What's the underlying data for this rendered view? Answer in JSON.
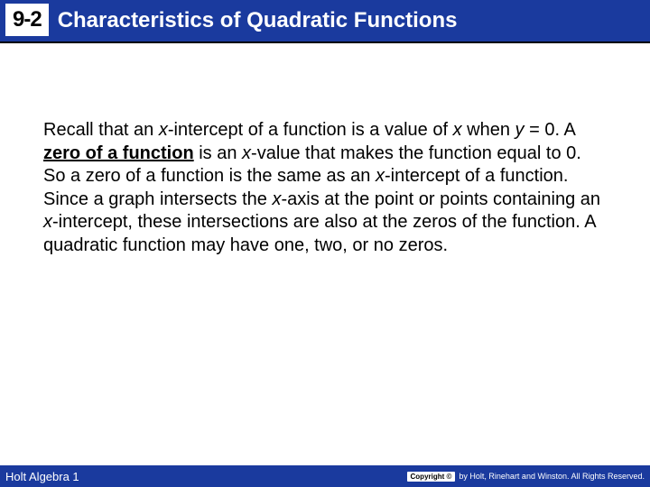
{
  "header": {
    "section_number": "9-2",
    "title": "Characteristics of Quadratic Functions",
    "bg_color": "#1a3a9e",
    "text_color": "#ffffff"
  },
  "body": {
    "p1_a": "Recall that an ",
    "p1_b": "x",
    "p1_c": "-intercept of a function is a value of ",
    "p1_d": "x",
    "p1_e": " when ",
    "p1_f": "y",
    "p1_g": " = 0. A ",
    "p1_h": "zero of a function",
    "p1_i": " is an ",
    "p1_j": "x",
    "p1_k": "-value that makes the function equal to 0. So a zero of a function is the same as an ",
    "p1_l": "x",
    "p1_m": "-intercept of a function. Since a graph intersects the ",
    "p1_n": "x",
    "p1_o": "-axis at the point or points containing an ",
    "p1_p": "x",
    "p1_q": "-intercept, these intersections are also at the zeros of the function. A quadratic function may have one, two, or no zeros."
  },
  "footer": {
    "left": "Holt Algebra 1",
    "copyright_label": "Copyright ©",
    "copyright_text": "by Holt, Rinehart and Winston. All Rights Reserved."
  }
}
